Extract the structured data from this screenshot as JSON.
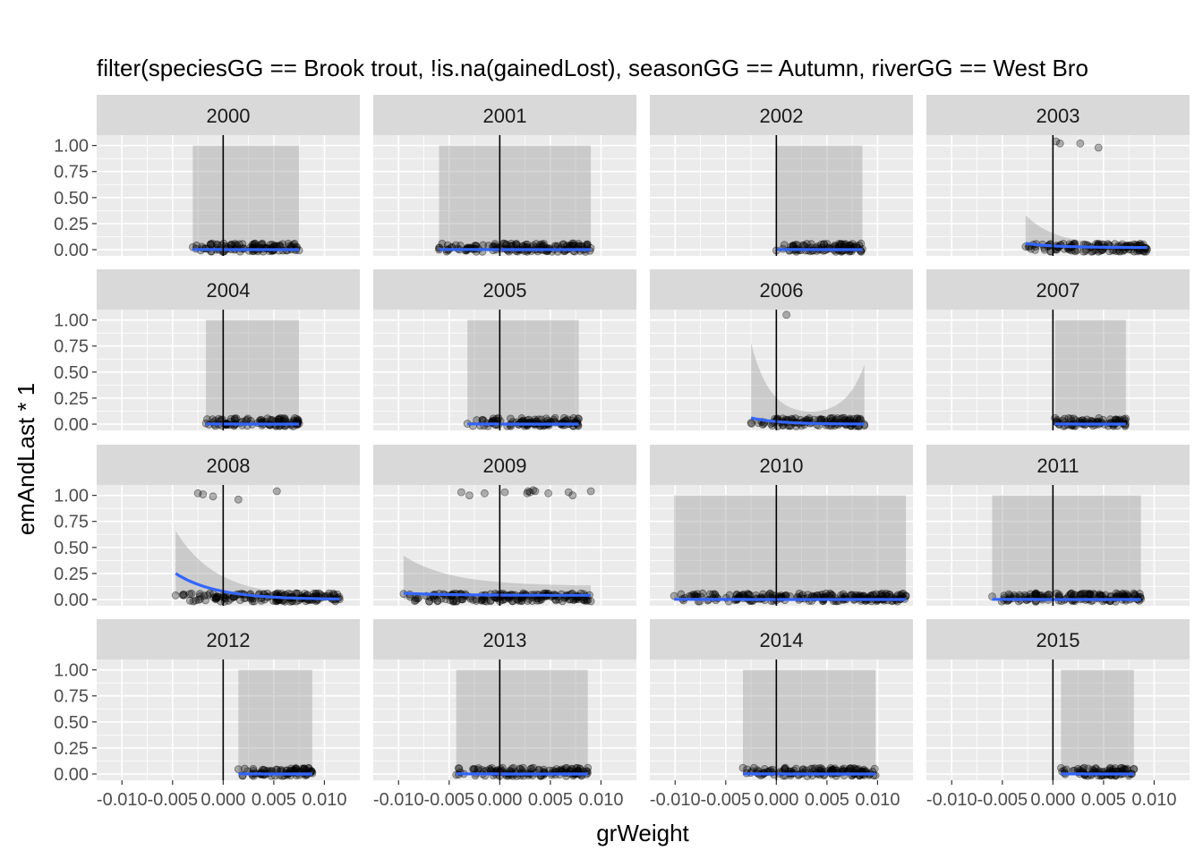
{
  "chart_data": {
    "type": "scatter",
    "title": "filter(speciesGG == Brook trout, !is.na(gainedLost), seasonGG == Autumn, riverGG == West Bro",
    "xlabel": "grWeight",
    "ylabel": "emAndLast * 1",
    "xlim": [
      -0.0125,
      0.0135
    ],
    "ylim": [
      -0.06,
      1.1
    ],
    "x_ticks": [
      -0.01,
      -0.005,
      0.0,
      0.005,
      0.01
    ],
    "x_tick_labels": [
      "-0.010",
      "-0.005",
      "0.000",
      "0.005",
      "0.010"
    ],
    "y_ticks": [
      0,
      0.25,
      0.5,
      0.75,
      1.0
    ],
    "y_tick_labels": [
      "0.00",
      "0.25",
      "0.50",
      "0.75",
      "1.00"
    ],
    "vline_x": 0,
    "grid": true,
    "colors": {
      "panel_bg": "#ebebeb",
      "strip_bg": "#d9d9d9",
      "grid": "#ffffff",
      "smooth_line": "#3366ff",
      "ribbon": "#999999",
      "points": "#000000"
    },
    "panels": [
      {
        "label": "2000",
        "x": [
          -0.003,
          0.0075
        ],
        "ribbon": {
          "type": "flat",
          "lo": 0,
          "hi": 1
        },
        "line": [
          0.002,
          0.0
        ],
        "outliers": []
      },
      {
        "label": "2001",
        "x": [
          -0.006,
          0.009
        ],
        "ribbon": {
          "type": "flat",
          "lo": 0,
          "hi": 1
        },
        "line": [
          0.002,
          0.0
        ],
        "outliers": []
      },
      {
        "label": "2002",
        "x": [
          0.0,
          0.0085
        ],
        "ribbon": {
          "type": "flat",
          "lo": 0,
          "hi": 1
        },
        "line": [
          0.002,
          0.0
        ],
        "outliers": []
      },
      {
        "label": "2003",
        "x": [
          -0.0027,
          0.0093
        ],
        "ribbon": {
          "type": "decay",
          "hi0": 0.33,
          "hiEnd": 0.04,
          "lo0": 0.0
        },
        "line": [
          0.06,
          0.02
        ],
        "outliers": [
          [
            0.0003,
            1.04
          ],
          [
            0.0007,
            1.02
          ],
          [
            0.0027,
            1.02
          ],
          [
            0.0045,
            0.98
          ]
        ]
      },
      {
        "label": "2004",
        "x": [
          -0.0017,
          0.0075
        ],
        "ribbon": {
          "type": "flat",
          "lo": 0,
          "hi": 1
        },
        "line": [
          0.002,
          0.0
        ],
        "outliers": []
      },
      {
        "label": "2005",
        "x": [
          -0.0032,
          0.0078
        ],
        "ribbon": {
          "type": "flat",
          "lo": 0,
          "hi": 1
        },
        "line": [
          0.002,
          0.0
        ],
        "outliers": []
      },
      {
        "label": "2006",
        "x": [
          -0.0025,
          0.0087
        ],
        "ribbon": {
          "type": "u",
          "hi0": 0.78,
          "hiMin": 0.06,
          "hiEnd": 0.57,
          "lo0": 0.0
        },
        "line": [
          0.06,
          0.0
        ],
        "outliers": [
          [
            0.001,
            1.05
          ]
        ]
      },
      {
        "label": "2007",
        "x": [
          0.0002,
          0.0072
        ],
        "ribbon": {
          "type": "flat",
          "lo": 0,
          "hi": 1
        },
        "line": [
          0.002,
          0.0
        ],
        "outliers": []
      },
      {
        "label": "2008",
        "x": [
          -0.0047,
          0.0115
        ],
        "ribbon": {
          "type": "decay",
          "hi0": 0.66,
          "hiEnd": 0.02,
          "lo0": 0.05
        },
        "line": [
          0.25,
          0.0
        ],
        "outliers": [
          [
            -0.0025,
            1.02
          ],
          [
            -0.002,
            1.01
          ],
          [
            -0.001,
            0.99
          ],
          [
            0.0015,
            0.96
          ],
          [
            0.0053,
            1.04
          ]
        ]
      },
      {
        "label": "2009",
        "x": [
          -0.0095,
          0.009
        ],
        "ribbon": {
          "type": "decay",
          "hi0": 0.42,
          "hiEnd": 0.13,
          "lo0": 0.0
        },
        "line": [
          0.06,
          0.04
        ],
        "outliers": [
          [
            -0.0038,
            1.03
          ],
          [
            -0.003,
            1.0
          ],
          [
            -0.0015,
            1.02
          ],
          [
            0.0005,
            1.03
          ],
          [
            0.0027,
            1.02
          ],
          [
            0.0028,
            1.04
          ],
          [
            0.003,
            1.03
          ],
          [
            0.0033,
            1.05
          ],
          [
            0.0035,
            1.04
          ],
          [
            0.0048,
            1.02
          ],
          [
            0.0068,
            1.03
          ],
          [
            0.0072,
            1.0
          ],
          [
            0.009,
            1.04
          ]
        ]
      },
      {
        "label": "2010",
        "x": [
          -0.0101,
          0.0128
        ],
        "ribbon": {
          "type": "flat",
          "lo": 0,
          "hi": 1
        },
        "line": [
          0.002,
          0.0
        ],
        "outliers": []
      },
      {
        "label": "2011",
        "x": [
          -0.006,
          0.0087
        ],
        "ribbon": {
          "type": "flat",
          "lo": 0,
          "hi": 1
        },
        "line": [
          0.002,
          0.0
        ],
        "outliers": []
      },
      {
        "label": "2012",
        "x": [
          0.0015,
          0.0088
        ],
        "ribbon": {
          "type": "flat",
          "lo": 0,
          "hi": 1
        },
        "line": [
          0.002,
          0.0
        ],
        "outliers": []
      },
      {
        "label": "2013",
        "x": [
          -0.0043,
          0.0087
        ],
        "ribbon": {
          "type": "flat",
          "lo": 0,
          "hi": 1
        },
        "line": [
          0.002,
          0.0
        ],
        "outliers": []
      },
      {
        "label": "2014",
        "x": [
          -0.0033,
          0.0098
        ],
        "ribbon": {
          "type": "flat",
          "lo": 0,
          "hi": 1
        },
        "line": [
          0.002,
          0.0
        ],
        "outliers": []
      },
      {
        "label": "2015",
        "x": [
          0.0008,
          0.008
        ],
        "ribbon": {
          "type": "flat",
          "lo": 0,
          "hi": 1
        },
        "line": [
          0.002,
          0.0
        ],
        "outliers": []
      }
    ]
  }
}
